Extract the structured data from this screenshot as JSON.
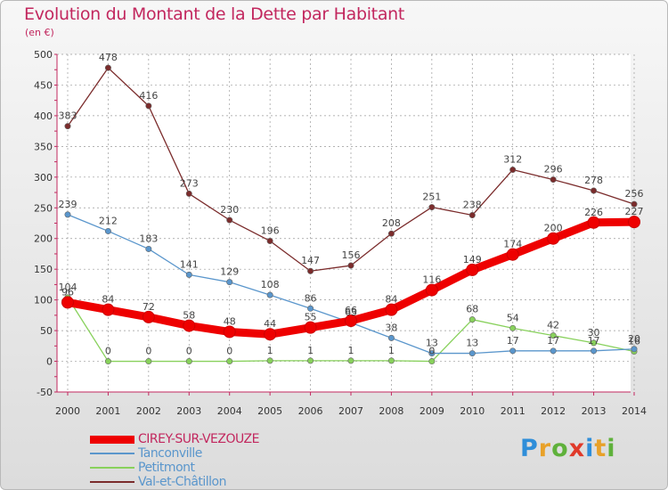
{
  "logo": {
    "letters": [
      "P",
      "r",
      "o",
      "x",
      "i",
      "t",
      "i"
    ],
    "colors": [
      "#2f8ed9",
      "#e8a129",
      "#5fb13b",
      "#e03a2a",
      "#2f8ed9",
      "#e8a129",
      "#5fb13b"
    ]
  },
  "chart_data": {
    "type": "line",
    "title": "Evolution du Montant de la Dette par Habitant",
    "subtitle": "(en €)",
    "x": [
      "2000",
      "2001",
      "2002",
      "2003",
      "2004",
      "2005",
      "2006",
      "2007",
      "2008",
      "2009",
      "2010",
      "2011",
      "2012",
      "2013",
      "2014"
    ],
    "yticks": [
      "500",
      "450",
      "400",
      "350",
      "300",
      "250",
      "200",
      "150",
      "100",
      "50",
      "0",
      "-50"
    ],
    "ylim": [
      -50,
      500
    ],
    "grid": true,
    "legend_position": "bottom-left",
    "series": [
      {
        "name": "CIREY-SUR-VEZOUZE",
        "color": "#ee0000",
        "values": [
          96,
          84,
          72,
          58,
          48,
          44,
          55,
          66,
          84,
          116,
          149,
          174,
          200,
          226,
          227
        ],
        "labels": [
          "96",
          "84",
          "72",
          "58",
          "48",
          "44",
          "55",
          "66",
          "84",
          "116",
          "149",
          "174",
          "200",
          "226",
          "227"
        ]
      },
      {
        "name": "Tanconville",
        "color": "#5a96cc",
        "values": [
          239,
          212,
          183,
          141,
          129,
          108,
          86,
          63,
          38,
          13,
          13,
          17,
          17,
          17,
          20
        ],
        "labels": [
          "239",
          "212",
          "183",
          "141",
          "129",
          "108",
          "86",
          "63",
          "38",
          "13",
          "13",
          "17",
          "17",
          "17",
          "20"
        ]
      },
      {
        "name": "Petitmont",
        "color": "#88d15c",
        "values": [
          104,
          0,
          0,
          0,
          0,
          1,
          1,
          1,
          1,
          0,
          68,
          54,
          42,
          30,
          16
        ],
        "labels": [
          "104",
          "0",
          "0",
          "0",
          "0",
          "1",
          "1",
          "1",
          "1",
          "0",
          "68",
          "54",
          "42",
          "30",
          "16"
        ]
      },
      {
        "name": "Val-et-Châtillon",
        "color": "#7b2c2c",
        "values": [
          383,
          478,
          416,
          273,
          230,
          196,
          147,
          156,
          208,
          251,
          238,
          312,
          296,
          278,
          256
        ],
        "labels": [
          "383",
          "478",
          "416",
          "273",
          "230",
          "196",
          "147",
          "156",
          "208",
          "251",
          "238",
          "312",
          "296",
          "278",
          "256"
        ]
      }
    ]
  }
}
